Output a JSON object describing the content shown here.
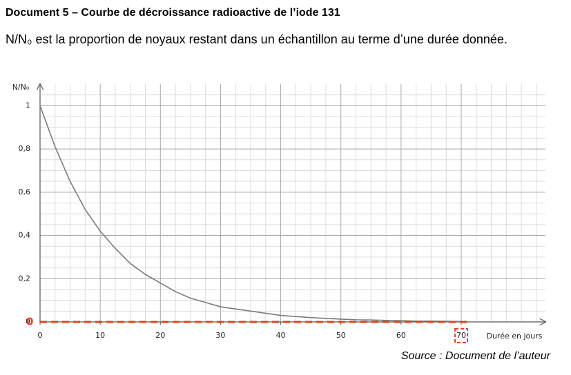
{
  "document": {
    "title": "Document 5 – Courbe de décroissance radioactive de l’iode 131",
    "text": "N/N₀ est la proportion de noyaux restant dans un échantillon au terme d’une durée donnée.",
    "source": "Source : Document de l’auteur"
  },
  "chart_data": {
    "type": "line",
    "ylabel": "N/N₀",
    "xlabel": "Durée en jours",
    "x": [
      0,
      2.5,
      5,
      7.5,
      10,
      12.5,
      15,
      17.5,
      20,
      22.5,
      25,
      27.5,
      30,
      32.5,
      35,
      37.5,
      40,
      42.5,
      45,
      47.5,
      50,
      52.5,
      55,
      57.5,
      60,
      62.5,
      65,
      67.5,
      70
    ],
    "series": [
      {
        "color": "#7a7a7a",
        "values": [
          1,
          0.81,
          0.65,
          0.52,
          0.42,
          0.34,
          0.27,
          0.22,
          0.18,
          0.14,
          0.11,
          0.09,
          0.07,
          0.06,
          0.05,
          0.04,
          0.03,
          0.025,
          0.02,
          0.016,
          0.013,
          0.01,
          0.009,
          0.007,
          0.006,
          0.004,
          0.004,
          0.003,
          0.002
        ]
      }
    ],
    "xlim": [
      0,
      84
    ],
    "ylim": [
      0,
      1.1
    ],
    "xticks": [
      0,
      10,
      20,
      30,
      40,
      50,
      60,
      70
    ],
    "yticks": [
      0,
      {
        "value": 0.2,
        "label": "0,2"
      },
      {
        "value": 0.4,
        "label": "0,4"
      },
      {
        "value": 0.6,
        "label": "0,6"
      },
      {
        "value": 0.8,
        "label": "0,8"
      },
      1
    ],
    "minor_xticks": [
      2.5,
      5,
      7.5,
      12.5,
      15,
      17.5,
      22.5,
      25,
      27.5,
      32.5,
      35,
      37.5,
      42.5,
      45,
      47.5,
      52.5,
      55,
      57.5,
      62.5,
      65,
      67.5,
      72.5,
      75,
      77.5,
      80,
      82.5
    ],
    "minor_yticks": [
      0.05,
      0.1,
      0.15,
      0.25,
      0.3,
      0.35,
      0.45,
      0.5,
      0.55,
      0.65,
      0.7,
      0.75,
      0.85,
      0.9,
      0.95,
      1.05
    ],
    "grid": true,
    "annotations": [
      "0"
    ]
  }
}
